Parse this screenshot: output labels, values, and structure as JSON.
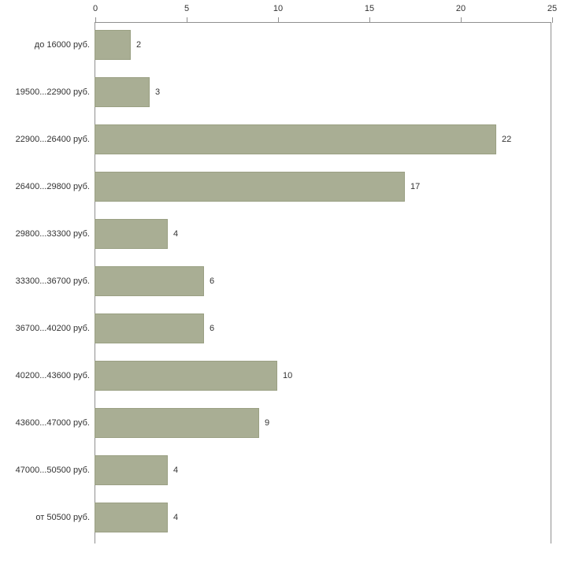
{
  "chart_data": {
    "type": "bar",
    "orientation": "horizontal",
    "title": "",
    "xlabel": "",
    "ylabel": "",
    "categories": [
      "до 16000 руб.",
      "19500...22900 руб.",
      "22900...26400 руб.",
      "26400...29800 руб.",
      "29800...33300 руб.",
      "33300...36700 руб.",
      "36700...40200 руб.",
      "40200...43600 руб.",
      "43600...47000 руб.",
      "47000...50500 руб.",
      "от 50500 руб."
    ],
    "values": [
      2,
      3,
      22,
      17,
      4,
      6,
      6,
      10,
      9,
      4,
      4
    ],
    "xlim": [
      0,
      25
    ],
    "x_ticks": [
      0,
      5,
      10,
      15,
      20,
      25
    ],
    "axis_position": "top",
    "grid": false,
    "legend": false,
    "bar_color": "#a9ae94",
    "bar_border_color": "#9aa083",
    "axis_color": "#8f8f8f",
    "text_color": "#333333",
    "background_color": "#ffffff"
  }
}
